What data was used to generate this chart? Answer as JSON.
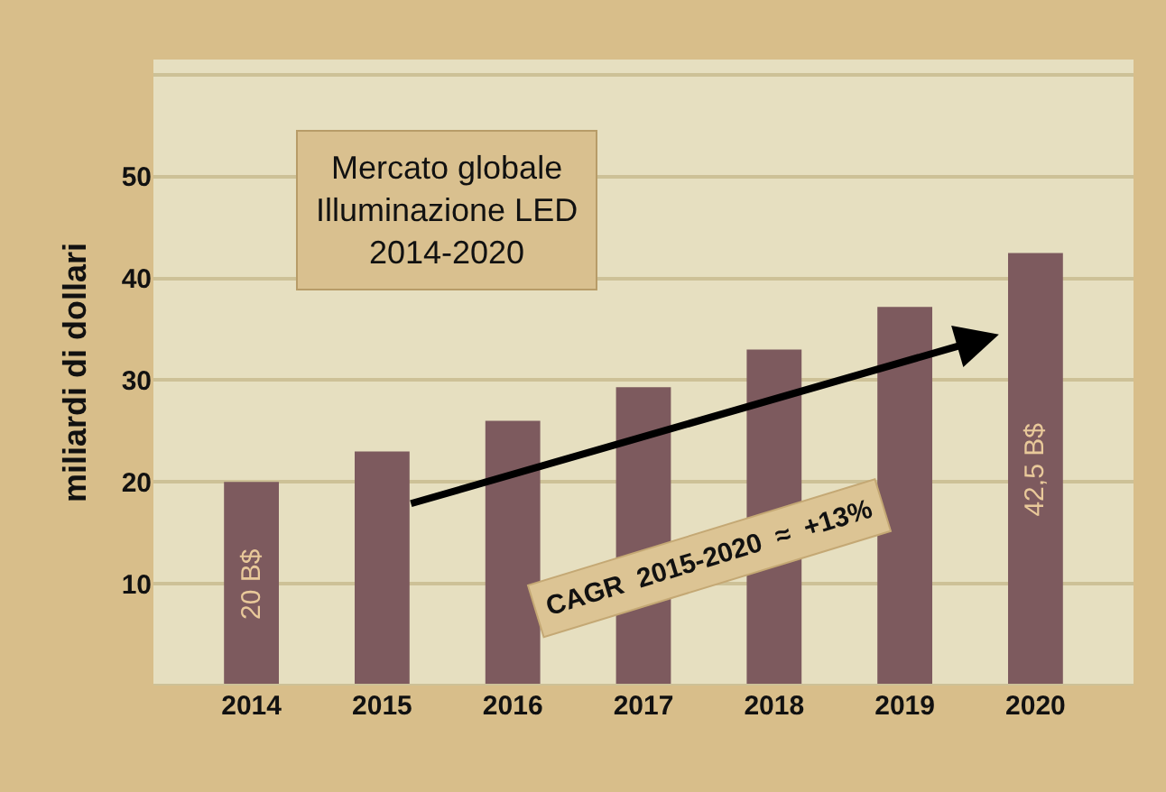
{
  "chart_data": {
    "type": "bar",
    "title": "Mercato globale\nIlluminazione LED\n2014-2020",
    "ylabel": "miliardi di dollari",
    "categories": [
      "2014",
      "2015",
      "2016",
      "2017",
      "2018",
      "2019",
      "2020"
    ],
    "values": [
      20,
      23,
      26,
      29.3,
      33,
      37.2,
      42.5
    ],
    "value_labels": [
      "20 B$",
      null,
      null,
      null,
      null,
      null,
      "42,5 B$"
    ],
    "color": "#7d5a5e",
    "ylim": [
      0,
      61.5
    ],
    "yticks": [
      10,
      20,
      30,
      40,
      50,
      {
        "value": 60,
        "label": null
      }
    ],
    "grid": "y",
    "legend": false,
    "annotations": [
      "CAGR  2015-2020  ≈  +13%"
    ]
  }
}
